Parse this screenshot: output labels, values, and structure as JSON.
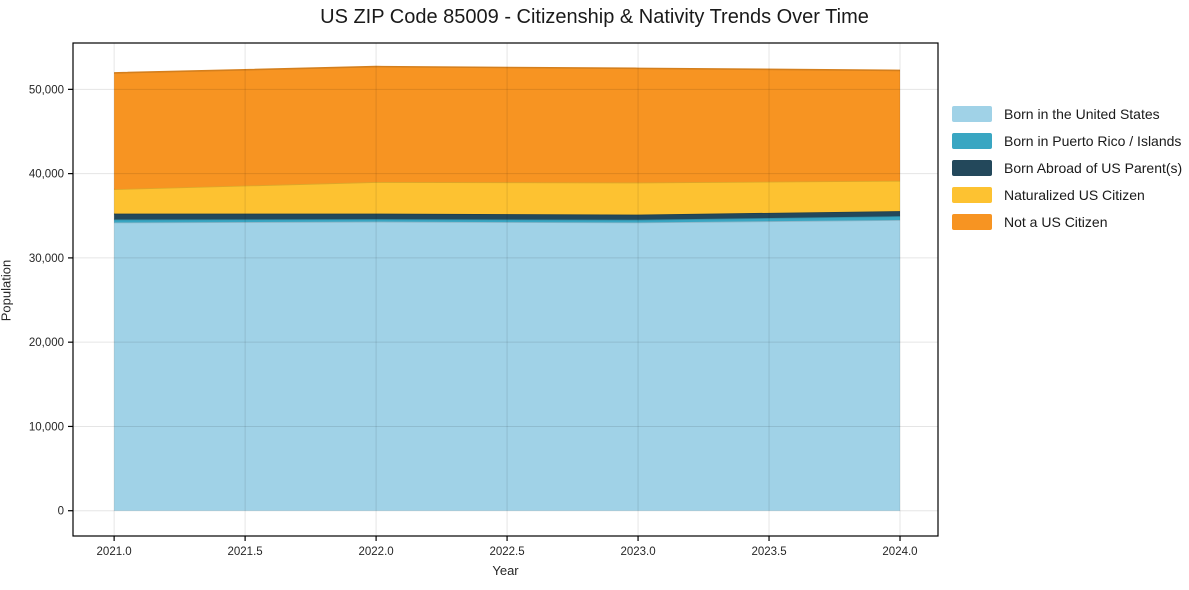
{
  "chart_data": {
    "type": "area",
    "stacked": true,
    "title": "US ZIP Code 85009 - Citizenship & Nativity Trends Over Time",
    "xlabel": "Year",
    "ylabel": "Population",
    "x": [
      2021,
      2022,
      2023,
      2024
    ],
    "series": [
      {
        "name": "Born in the United States",
        "color": "#a0d2e7",
        "values": [
          34200,
          34300,
          34200,
          34500
        ]
      },
      {
        "name": "Born in Puerto Rico / Islands",
        "color": "#39a6c2",
        "values": [
          350,
          300,
          320,
          450
        ]
      },
      {
        "name": "Born Abroad of US Parent(s)",
        "color": "#23485b",
        "values": [
          700,
          650,
          620,
          600
        ]
      },
      {
        "name": "Naturalized US Citizen",
        "color": "#fdc231",
        "values": [
          2900,
          3750,
          3800,
          3600
        ]
      },
      {
        "name": "Not a US Citizen",
        "color": "#f79422",
        "values": [
          13800,
          13700,
          13550,
          13100
        ]
      }
    ],
    "xlim": [
      2020.843,
      2024.145
    ],
    "ylim": [
      -3000,
      55500
    ],
    "xticks": {
      "values": [
        2021.0,
        2021.5,
        2022.0,
        2022.5,
        2023.0,
        2023.5,
        2024.0
      ],
      "labels": [
        "2021.0",
        "2021.5",
        "2022.0",
        "2022.5",
        "2023.0",
        "2023.5",
        "2024.0"
      ]
    },
    "yticks": {
      "values": [
        0,
        10000,
        20000,
        30000,
        40000,
        50000
      ],
      "labels": [
        "0",
        "10,000",
        "20,000",
        "30,000",
        "40,000",
        "50,000"
      ]
    },
    "grid": true,
    "legend_position": "right",
    "axis_color": "#000000",
    "tick_label_color": "#262626"
  }
}
